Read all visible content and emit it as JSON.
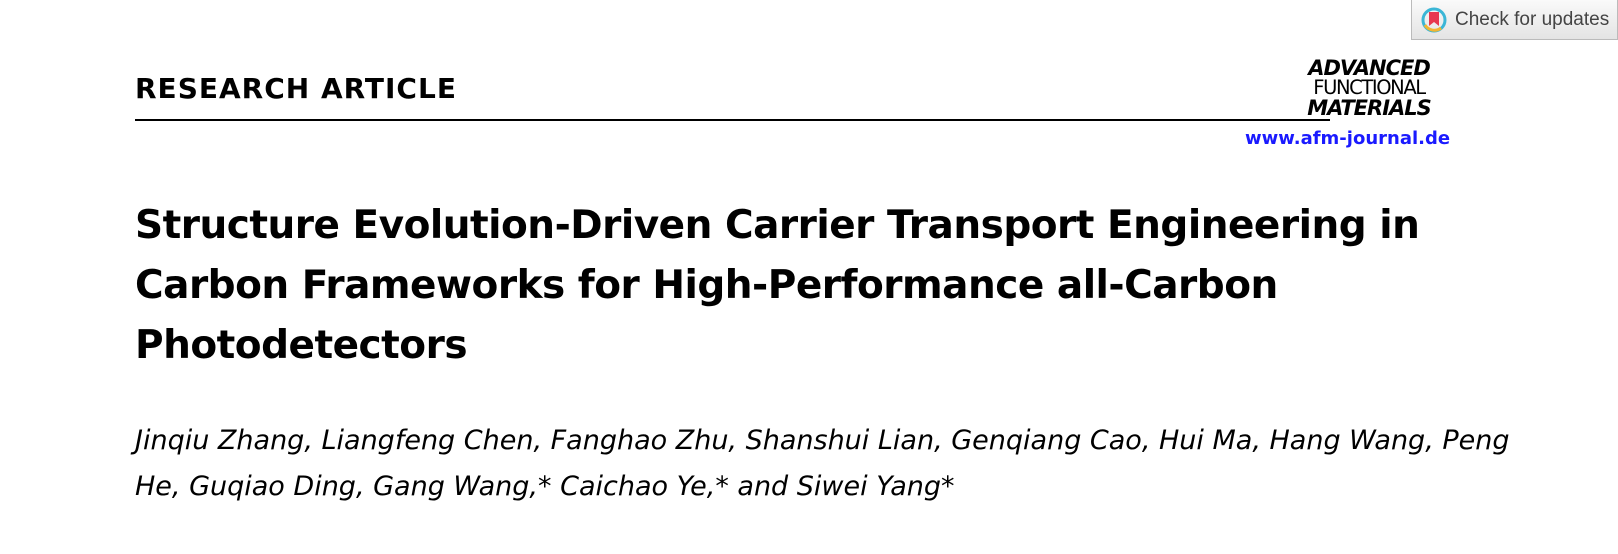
{
  "check_updates": {
    "label": "Check for updates",
    "icon": "crossmark-bookmark-icon"
  },
  "header": {
    "section_label": "RESEARCH ARTICLE",
    "journal_logo": {
      "line1": "ADVANCED",
      "line2": "FUNCTIONAL",
      "line3": "MATERIALS"
    },
    "journal_url": "www.afm-journal.de",
    "url_color": "#1a1aff"
  },
  "article": {
    "title": "Structure Evolution-Driven Carrier Transport Engineering in Carbon Frameworks for High-Performance all-Carbon Photodetectors",
    "authors": "Jinqiu Zhang, Liangfeng Chen, Fanghao Zhu, Shanshui Lian, Genqiang Cao, Hui Ma, Hang Wang, Peng He, Guqiao Ding, Gang Wang,* Caichao Ye,* and Siwei Yang*"
  }
}
